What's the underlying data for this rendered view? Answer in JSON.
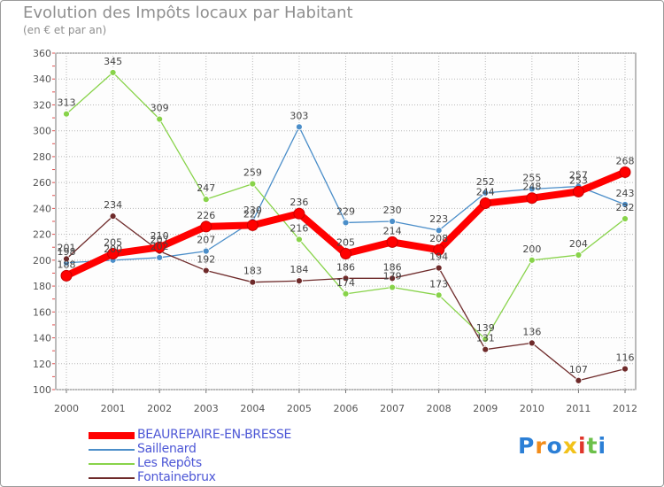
{
  "chart_data": {
    "type": "line",
    "title": "Evolution des Impôts locaux par Habitant",
    "subtitle": "(en € et par an)",
    "xlabel": "",
    "ylabel": "",
    "x": [
      "2000",
      "2001",
      "2002",
      "2003",
      "2004",
      "2005",
      "2006",
      "2007",
      "2008",
      "2009",
      "2010",
      "2011",
      "2012"
    ],
    "ylim": [
      100,
      360
    ],
    "yticks": [
      100,
      120,
      140,
      160,
      180,
      200,
      220,
      240,
      260,
      280,
      300,
      320,
      340,
      360
    ],
    "grid": true,
    "legend_position": "bottom-left",
    "series": [
      {
        "name": "BEAUREPAIRE-EN-BRESSE",
        "color": "#ff0000",
        "values": [
          188,
          205,
          210,
          226,
          227,
          236,
          205,
          214,
          208,
          244,
          248,
          253,
          268
        ]
      },
      {
        "name": "Saillenard",
        "color": "#4b8ec9",
        "values": [
          198,
          200,
          202,
          207,
          230,
          303,
          229,
          230,
          223,
          252,
          255,
          257,
          243
        ]
      },
      {
        "name": "Les Repôts",
        "color": "#88d34a",
        "values": [
          313,
          345,
          309,
          247,
          259,
          216,
          174,
          179,
          173,
          139,
          200,
          204,
          232
        ]
      },
      {
        "name": "Fontainebrux",
        "color": "#6e2a2a",
        "values": [
          201,
          234,
          207,
          192,
          183,
          184,
          186,
          186,
          194,
          131,
          136,
          107,
          116
        ]
      }
    ]
  },
  "logo": {
    "letters": [
      "P",
      "r",
      "o",
      "x",
      "i",
      "t",
      "i"
    ],
    "colors": [
      "#2b7fd6",
      "#f28c1a",
      "#2b7fd6",
      "#f2c21a",
      "#e0362c",
      "#6cc04a",
      "#2b7fd6"
    ]
  }
}
